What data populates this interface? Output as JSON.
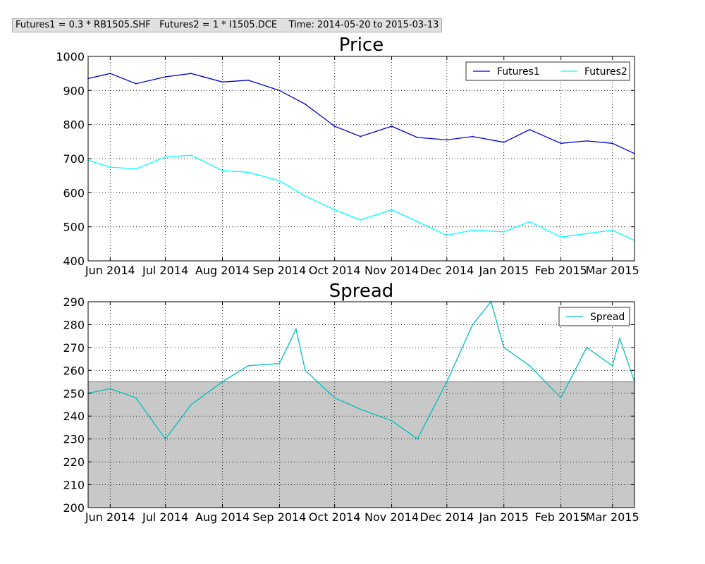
{
  "header": {
    "text": "Futures1 = 0.3 * RB1505.SHF   Futures2 = 1 * I1505.DCE    Time: 2014-05-20 to 2015-03-13"
  },
  "chart_data": [
    {
      "type": "line",
      "title": "Price",
      "xlabel": "",
      "ylabel": "",
      "x_ticks": [
        "Jun 2014",
        "Jul 2014",
        "Aug 2014",
        "Sep 2014",
        "Oct 2014",
        "Nov 2014",
        "Dec 2014",
        "Jan 2015",
        "Feb 2015",
        "Mar 2015"
      ],
      "y_ticks": [
        "400",
        "500",
        "600",
        "700",
        "800",
        "900",
        "1000"
      ],
      "ylim": [
        400,
        1000
      ],
      "grid": true,
      "legend": "top-right",
      "x": [
        "2014-05-20",
        "2014-06-01",
        "2014-06-15",
        "2014-07-01",
        "2014-07-15",
        "2014-08-01",
        "2014-08-15",
        "2014-09-01",
        "2014-09-15",
        "2014-10-01",
        "2014-10-15",
        "2014-11-01",
        "2014-11-15",
        "2014-12-01",
        "2014-12-15",
        "2015-01-01",
        "2015-01-15",
        "2015-02-01",
        "2015-02-15",
        "2015-03-01",
        "2015-03-13"
      ],
      "series": [
        {
          "name": "Futures1",
          "color": "#0000cc",
          "values": [
            935,
            950,
            920,
            940,
            950,
            925,
            930,
            900,
            860,
            795,
            765,
            795,
            762,
            755,
            765,
            748,
            785,
            745,
            752,
            745,
            715
          ]
        },
        {
          "name": "Futures2",
          "color": "#00ffff",
          "values": [
            695,
            675,
            670,
            705,
            710,
            665,
            660,
            635,
            590,
            550,
            520,
            550,
            515,
            475,
            490,
            485,
            515,
            470,
            480,
            490,
            460
          ]
        }
      ]
    },
    {
      "type": "area",
      "title": "Spread",
      "xlabel": "",
      "ylabel": "",
      "x_ticks": [
        "Jun 2014",
        "Jul 2014",
        "Aug 2014",
        "Sep 2014",
        "Oct 2014",
        "Nov 2014",
        "Dec 2014",
        "Jan 2015",
        "Feb 2015",
        "Mar 2015"
      ],
      "y_ticks": [
        "200",
        "210",
        "220",
        "230",
        "240",
        "250",
        "260",
        "270",
        "280",
        "290"
      ],
      "ylim": [
        200,
        290
      ],
      "grid": true,
      "legend": "top-right",
      "band": {
        "from": 200,
        "to": 255,
        "color": "#c8c8c8"
      },
      "x": [
        "2014-05-20",
        "2014-06-01",
        "2014-06-15",
        "2014-07-01",
        "2014-07-15",
        "2014-08-01",
        "2014-08-15",
        "2014-09-01",
        "2014-09-10",
        "2014-09-15",
        "2014-10-01",
        "2014-10-15",
        "2014-11-01",
        "2014-11-15",
        "2014-12-01",
        "2014-12-15",
        "2014-12-25",
        "2015-01-01",
        "2015-01-15",
        "2015-02-01",
        "2015-02-15",
        "2015-03-01",
        "2015-03-05",
        "2015-03-13"
      ],
      "series": [
        {
          "name": "Spread",
          "color": "#00bfbf",
          "values": [
            250,
            252,
            248,
            230,
            245,
            255,
            262,
            263,
            278,
            260,
            248,
            243,
            238,
            230,
            255,
            280,
            290,
            270,
            262,
            248,
            270,
            262,
            274,
            255
          ]
        }
      ]
    }
  ]
}
